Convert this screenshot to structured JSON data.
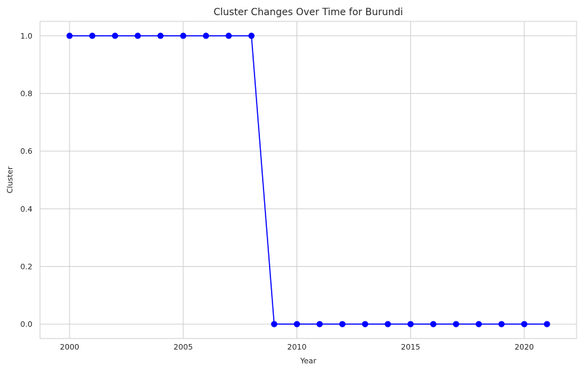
{
  "chart_data": {
    "type": "line",
    "title": "Cluster Changes Over Time for Burundi",
    "xlabel": "Year",
    "ylabel": "Cluster",
    "xlim": [
      1998.7,
      2022.3
    ],
    "ylim": [
      -0.05,
      1.05
    ],
    "xticks": [
      2000,
      2005,
      2010,
      2015,
      2020
    ],
    "xtick_labels": [
      "2000",
      "2005",
      "2010",
      "2015",
      "2020"
    ],
    "yticks": [
      0.0,
      0.2,
      0.4,
      0.6,
      0.8,
      1.0
    ],
    "ytick_labels": [
      "0.0",
      "0.2",
      "0.4",
      "0.6",
      "0.8",
      "1.0"
    ],
    "grid": true,
    "series": [
      {
        "color": "#0000ff",
        "marker": "circle",
        "x": [
          2000,
          2001,
          2002,
          2003,
          2004,
          2005,
          2006,
          2007,
          2008,
          2009,
          2010,
          2011,
          2012,
          2013,
          2014,
          2015,
          2016,
          2017,
          2018,
          2019,
          2020,
          2021
        ],
        "y": [
          1,
          1,
          1,
          1,
          1,
          1,
          1,
          1,
          1,
          0,
          0,
          0,
          0,
          0,
          0,
          0,
          0,
          0,
          0,
          0,
          0,
          0
        ]
      }
    ]
  }
}
